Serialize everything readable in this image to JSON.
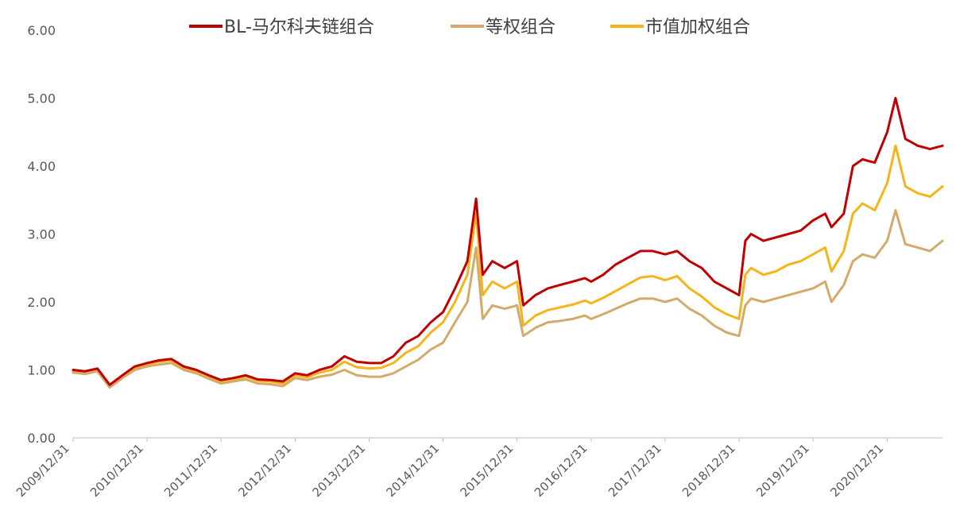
{
  "chart_data": {
    "type": "line",
    "title": "",
    "xlabel": "",
    "ylabel": "",
    "ylim": [
      0,
      6
    ],
    "y_ticks": [
      "0.00",
      "1.00",
      "2.00",
      "3.00",
      "4.00",
      "5.00",
      "6.00"
    ],
    "x_ticks": [
      "2009/12/31",
      "2010/12/31",
      "2011/12/31",
      "2012/12/31",
      "2013/12/31",
      "2014/12/31",
      "2015/12/31",
      "2016/12/31",
      "2017/12/31",
      "2018/12/31",
      "2019/12/31",
      "2020/12/31"
    ],
    "grid": false,
    "legend_position": "top",
    "series": [
      {
        "name": "BL-马尔科夫链组合",
        "color": "#c00000",
        "x": [
          "2009/12/31",
          "2010/02/28",
          "2010/04/30",
          "2010/06/30",
          "2010/08/31",
          "2010/10/31",
          "2010/12/31",
          "2011/02/28",
          "2011/04/30",
          "2011/06/30",
          "2011/08/31",
          "2011/10/31",
          "2011/12/31",
          "2012/02/29",
          "2012/04/30",
          "2012/06/30",
          "2012/08/31",
          "2012/10/31",
          "2012/12/31",
          "2013/02/28",
          "2013/04/30",
          "2013/06/30",
          "2013/08/31",
          "2013/10/31",
          "2013/12/31",
          "2014/02/28",
          "2014/04/30",
          "2014/06/30",
          "2014/08/31",
          "2014/10/31",
          "2014/12/31",
          "2015/02/28",
          "2015/04/30",
          "2015/06/12",
          "2015/07/15",
          "2015/08/31",
          "2015/10/31",
          "2015/12/31",
          "2016/01/31",
          "2016/03/31",
          "2016/05/31",
          "2016/07/31",
          "2016/09/30",
          "2016/11/30",
          "2016/12/31",
          "2017/02/28",
          "2017/04/30",
          "2017/06/30",
          "2017/08/31",
          "2017/10/31",
          "2017/12/31",
          "2018/02/28",
          "2018/04/30",
          "2018/06/30",
          "2018/08/31",
          "2018/10/31",
          "2018/12/31",
          "2019/01/31",
          "2019/02/28",
          "2019/04/30",
          "2019/06/30",
          "2019/08/31",
          "2019/10/31",
          "2019/12/31",
          "2020/02/29",
          "2020/03/31",
          "2020/05/31",
          "2020/07/15",
          "2020/08/31",
          "2020/10/31",
          "2020/12/31",
          "2021/02/10",
          "2021/03/31",
          "2021/05/31",
          "2021/07/31",
          "2021/09/30"
        ],
        "values": [
          1.0,
          0.98,
          1.02,
          0.78,
          0.92,
          1.05,
          1.1,
          1.14,
          1.16,
          1.05,
          1.0,
          0.92,
          0.85,
          0.88,
          0.92,
          0.86,
          0.85,
          0.83,
          0.95,
          0.92,
          1.0,
          1.05,
          1.2,
          1.12,
          1.1,
          1.1,
          1.2,
          1.4,
          1.5,
          1.7,
          1.85,
          2.2,
          2.6,
          3.52,
          2.4,
          2.6,
          2.5,
          2.6,
          1.95,
          2.1,
          2.2,
          2.25,
          2.3,
          2.35,
          2.3,
          2.4,
          2.55,
          2.65,
          2.75,
          2.75,
          2.7,
          2.75,
          2.6,
          2.5,
          2.3,
          2.2,
          2.1,
          2.9,
          3.0,
          2.9,
          2.95,
          3.0,
          3.05,
          3.2,
          3.3,
          3.1,
          3.3,
          4.0,
          4.1,
          4.05,
          4.5,
          5.0,
          4.4,
          4.3,
          4.25,
          4.3
        ]
      },
      {
        "name": "等权组合",
        "color": "#d4aa6a",
        "x": [
          "2009/12/31",
          "2010/02/28",
          "2010/04/30",
          "2010/06/30",
          "2010/08/31",
          "2010/10/31",
          "2010/12/31",
          "2011/02/28",
          "2011/04/30",
          "2011/06/30",
          "2011/08/31",
          "2011/10/31",
          "2011/12/31",
          "2012/02/29",
          "2012/04/30",
          "2012/06/30",
          "2012/08/31",
          "2012/10/31",
          "2012/12/31",
          "2013/02/28",
          "2013/04/30",
          "2013/06/30",
          "2013/08/31",
          "2013/10/31",
          "2013/12/31",
          "2014/02/28",
          "2014/04/30",
          "2014/06/30",
          "2014/08/31",
          "2014/10/31",
          "2014/12/31",
          "2015/02/28",
          "2015/04/30",
          "2015/06/12",
          "2015/07/15",
          "2015/08/31",
          "2015/10/31",
          "2015/12/31",
          "2016/01/31",
          "2016/03/31",
          "2016/05/31",
          "2016/07/31",
          "2016/09/30",
          "2016/11/30",
          "2016/12/31",
          "2017/02/28",
          "2017/04/30",
          "2017/06/30",
          "2017/08/31",
          "2017/10/31",
          "2017/12/31",
          "2018/02/28",
          "2018/04/30",
          "2018/06/30",
          "2018/08/31",
          "2018/10/31",
          "2018/12/31",
          "2019/01/31",
          "2019/02/28",
          "2019/04/30",
          "2019/06/30",
          "2019/08/31",
          "2019/10/31",
          "2019/12/31",
          "2020/02/29",
          "2020/03/31",
          "2020/05/31",
          "2020/07/15",
          "2020/08/31",
          "2020/10/31",
          "2020/12/31",
          "2021/02/10",
          "2021/03/31",
          "2021/05/31",
          "2021/07/31",
          "2021/09/30"
        ],
        "values": [
          0.96,
          0.94,
          0.98,
          0.74,
          0.88,
          1.0,
          1.05,
          1.08,
          1.1,
          1.0,
          0.95,
          0.87,
          0.8,
          0.83,
          0.86,
          0.8,
          0.79,
          0.76,
          0.88,
          0.85,
          0.9,
          0.93,
          1.0,
          0.92,
          0.9,
          0.9,
          0.95,
          1.05,
          1.15,
          1.3,
          1.4,
          1.7,
          2.0,
          2.8,
          1.75,
          1.95,
          1.9,
          1.95,
          1.5,
          1.62,
          1.7,
          1.72,
          1.75,
          1.8,
          1.75,
          1.82,
          1.9,
          1.98,
          2.05,
          2.05,
          2.0,
          2.05,
          1.9,
          1.8,
          1.65,
          1.55,
          1.5,
          1.95,
          2.05,
          2.0,
          2.05,
          2.1,
          2.15,
          2.2,
          2.3,
          2.0,
          2.25,
          2.6,
          2.7,
          2.65,
          2.9,
          3.35,
          2.85,
          2.8,
          2.75,
          2.9
        ]
      },
      {
        "name": "市值加权组合",
        "color": "#f5b41c",
        "x": [
          "2009/12/31",
          "2010/02/28",
          "2010/04/30",
          "2010/06/30",
          "2010/08/31",
          "2010/10/31",
          "2010/12/31",
          "2011/02/28",
          "2011/04/30",
          "2011/06/30",
          "2011/08/31",
          "2011/10/31",
          "2011/12/31",
          "2012/02/29",
          "2012/04/30",
          "2012/06/30",
          "2012/08/31",
          "2012/10/31",
          "2012/12/31",
          "2013/02/28",
          "2013/04/30",
          "2013/06/30",
          "2013/08/31",
          "2013/10/31",
          "2013/12/31",
          "2014/02/28",
          "2014/04/30",
          "2014/06/30",
          "2014/08/31",
          "2014/10/31",
          "2014/12/31",
          "2015/02/28",
          "2015/04/30",
          "2015/06/12",
          "2015/07/15",
          "2015/08/31",
          "2015/10/31",
          "2015/12/31",
          "2016/01/31",
          "2016/03/31",
          "2016/05/31",
          "2016/07/31",
          "2016/09/30",
          "2016/11/30",
          "2016/12/31",
          "2017/02/28",
          "2017/04/30",
          "2017/06/30",
          "2017/08/31",
          "2017/10/31",
          "2017/12/31",
          "2018/02/28",
          "2018/04/30",
          "2018/06/30",
          "2018/08/31",
          "2018/10/31",
          "2018/12/31",
          "2019/01/31",
          "2019/02/28",
          "2019/04/30",
          "2019/06/30",
          "2019/08/31",
          "2019/10/31",
          "2019/12/31",
          "2020/02/29",
          "2020/03/31",
          "2020/05/31",
          "2020/07/15",
          "2020/08/31",
          "2020/10/31",
          "2020/12/31",
          "2021/02/10",
          "2021/03/31",
          "2021/05/31",
          "2021/07/31",
          "2021/09/30"
        ],
        "values": [
          0.98,
          0.96,
          1.0,
          0.76,
          0.9,
          1.02,
          1.08,
          1.12,
          1.14,
          1.03,
          0.98,
          0.9,
          0.83,
          0.86,
          0.9,
          0.84,
          0.83,
          0.8,
          0.92,
          0.89,
          0.96,
          1.0,
          1.12,
          1.04,
          1.02,
          1.03,
          1.1,
          1.25,
          1.35,
          1.55,
          1.7,
          2.0,
          2.4,
          3.3,
          2.1,
          2.3,
          2.2,
          2.3,
          1.65,
          1.8,
          1.88,
          1.92,
          1.96,
          2.02,
          1.98,
          2.06,
          2.16,
          2.26,
          2.36,
          2.38,
          2.32,
          2.38,
          2.2,
          2.08,
          1.92,
          1.82,
          1.75,
          2.4,
          2.5,
          2.4,
          2.45,
          2.55,
          2.6,
          2.7,
          2.8,
          2.45,
          2.75,
          3.3,
          3.45,
          3.35,
          3.75,
          4.3,
          3.7,
          3.6,
          3.55,
          3.7
        ]
      }
    ]
  }
}
